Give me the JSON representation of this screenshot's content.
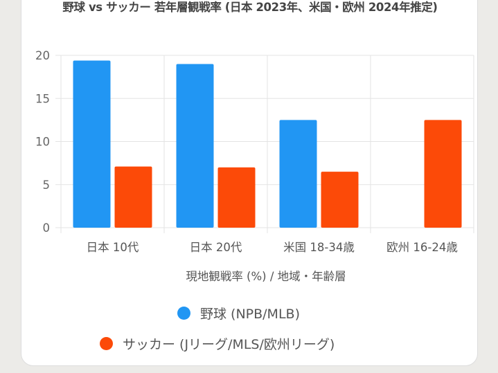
{
  "chart_data": {
    "type": "bar",
    "title": "野球 vs サッカー 若年層観戦率 (日本 2023年、米国・欧州 2024年推定)",
    "xlabel": "現地観戦率 (%) / 地域・年齢層",
    "ylabel": "",
    "categories": [
      "日本 10代",
      "日本 20代",
      "米国 18-34歳",
      "欧州 16-24歳"
    ],
    "series": [
      {
        "name": "野球 (NPB/MLB)",
        "values": [
          19.4,
          19.0,
          12.5,
          0
        ],
        "color": "#2196f3"
      },
      {
        "name": "サッカー (Jリーグ/MLS/欧州リーグ)",
        "values": [
          7.1,
          7.0,
          6.5,
          12.5
        ],
        "color": "#fc4a08"
      }
    ],
    "ylim": [
      0,
      20
    ],
    "yticks": [
      0,
      5,
      10,
      15,
      20
    ],
    "grid": true,
    "legend_position": "bottom"
  }
}
